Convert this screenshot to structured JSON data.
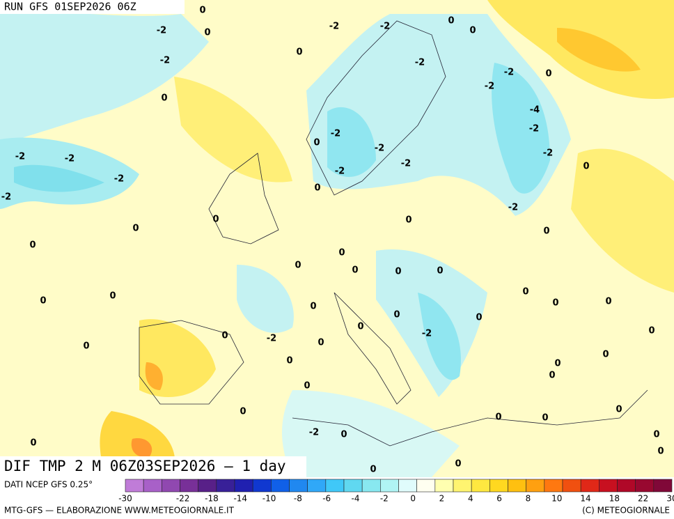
{
  "header": {
    "title": "RUN GFS 01SEP2026 06Z"
  },
  "map": {
    "caption": "DIF TMP 2 M 06Z03SEP2026 — 1 day",
    "labels": [
      0,
      -2,
      0,
      -2,
      -2,
      0,
      0,
      -2,
      0,
      -2,
      -2,
      0,
      -2,
      0,
      -4,
      -2,
      -2,
      0,
      -2,
      -2,
      -2,
      -2,
      -2,
      -2,
      0,
      -2,
      0,
      -2,
      -2,
      0,
      0,
      0,
      0,
      0,
      0,
      0,
      0,
      0,
      0,
      0,
      0,
      0,
      0,
      0,
      0,
      0,
      0,
      0,
      -2,
      0,
      0,
      -2,
      0,
      0,
      0,
      0,
      0,
      0,
      0,
      0,
      0,
      0,
      0,
      -2,
      0,
      0,
      0,
      0,
      0,
      0
    ]
  },
  "legend": {
    "source": "DATI NCEP GFS 0.25°",
    "colors": [
      "#c07cd8",
      "#a860c8",
      "#9048b0",
      "#783098",
      "#582088",
      "#382098",
      "#2020b0",
      "#1038d0",
      "#1060e8",
      "#2088f0",
      "#30a8f8",
      "#40c8f8",
      "#60d8f0",
      "#88e8f0",
      "#b0f4f4",
      "#e0fcfc",
      "#fffff0",
      "#ffffb0",
      "#fff470",
      "#ffe840",
      "#ffd820",
      "#ffc010",
      "#ffa010",
      "#ff7810",
      "#f05010",
      "#e02818",
      "#c81020",
      "#b00828",
      "#980830",
      "#800838"
    ],
    "ticks": [
      -30,
      -22,
      -18,
      -14,
      -10,
      -8,
      -6,
      -4,
      -2,
      0,
      2,
      4,
      6,
      8,
      10,
      14,
      18,
      22,
      30
    ]
  },
  "footer": {
    "left": "MTG-GFS — ELABORAZIONE WWW.METEOGIORNALE.IT",
    "right": "(C) METEOGIORNALE"
  }
}
